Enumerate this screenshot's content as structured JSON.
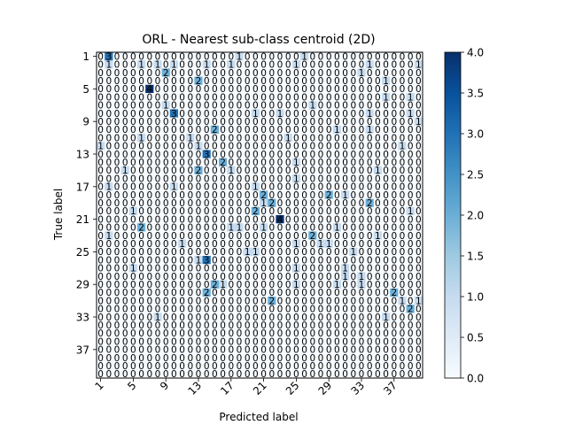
{
  "chart_data": {
    "type": "heatmap",
    "title": "ORL - Nearest sub-class centroid (2D)",
    "xlabel": "Predicted label",
    "ylabel": "True label",
    "n_classes": 40,
    "x_tick_labels": [
      "1",
      "5",
      "9",
      "13",
      "17",
      "21",
      "25",
      "29",
      "33",
      "37"
    ],
    "y_tick_labels": [
      "1",
      "5",
      "9",
      "13",
      "17",
      "21",
      "25",
      "29",
      "33",
      "37"
    ],
    "tick_step": 4,
    "colorbar": {
      "min": 0.0,
      "max": 4.0,
      "ticks": [
        "0.0",
        "0.5",
        "1.0",
        "1.5",
        "2.0",
        "2.5",
        "3.0",
        "3.5",
        "4.0"
      ]
    },
    "colormap": "Blues",
    "colors": {
      "low": "#f7fbff",
      "high": "#08306b",
      "text_dark": "#08306b",
      "text_light": "#ffffff"
    },
    "cells": [
      [
        1,
        2,
        3
      ],
      [
        1,
        18,
        1
      ],
      [
        1,
        26,
        1
      ],
      [
        2,
        2,
        1
      ],
      [
        2,
        6,
        1
      ],
      [
        2,
        8,
        1
      ],
      [
        2,
        10,
        1
      ],
      [
        2,
        14,
        1
      ],
      [
        2,
        17,
        1
      ],
      [
        2,
        25,
        1
      ],
      [
        2,
        34,
        1
      ],
      [
        2,
        40,
        1
      ],
      [
        3,
        9,
        2
      ],
      [
        3,
        33,
        1
      ],
      [
        4,
        13,
        2
      ],
      [
        4,
        36,
        1
      ],
      [
        5,
        7,
        4
      ],
      [
        6,
        36,
        1
      ],
      [
        6,
        39,
        1
      ],
      [
        7,
        9,
        1
      ],
      [
        7,
        27,
        1
      ],
      [
        8,
        10,
        3
      ],
      [
        8,
        20,
        1
      ],
      [
        8,
        23,
        1
      ],
      [
        8,
        34,
        1
      ],
      [
        8,
        39,
        1
      ],
      [
        9,
        40,
        1
      ],
      [
        10,
        15,
        2
      ],
      [
        10,
        30,
        1
      ],
      [
        10,
        34,
        1
      ],
      [
        11,
        6,
        1
      ],
      [
        11,
        12,
        1
      ],
      [
        11,
        24,
        1
      ],
      [
        12,
        1,
        1
      ],
      [
        12,
        13,
        1
      ],
      [
        12,
        38,
        1
      ],
      [
        13,
        14,
        3
      ],
      [
        14,
        16,
        2
      ],
      [
        14,
        25,
        1
      ],
      [
        15,
        4,
        1
      ],
      [
        15,
        13,
        2
      ],
      [
        15,
        17,
        1
      ],
      [
        15,
        35,
        1
      ],
      [
        16,
        25,
        1
      ],
      [
        17,
        2,
        1
      ],
      [
        17,
        10,
        1
      ],
      [
        17,
        20,
        1
      ],
      [
        18,
        21,
        2
      ],
      [
        18,
        29,
        2
      ],
      [
        18,
        31,
        1
      ],
      [
        19,
        21,
        1
      ],
      [
        19,
        22,
        2
      ],
      [
        19,
        34,
        2
      ],
      [
        20,
        5,
        1
      ],
      [
        20,
        20,
        2
      ],
      [
        20,
        39,
        1
      ],
      [
        21,
        23,
        4
      ],
      [
        22,
        6,
        2
      ],
      [
        22,
        17,
        1
      ],
      [
        22,
        18,
        1
      ],
      [
        22,
        21,
        1
      ],
      [
        22,
        30,
        1
      ],
      [
        23,
        2,
        1
      ],
      [
        23,
        27,
        2
      ],
      [
        23,
        35,
        1
      ],
      [
        24,
        11,
        1
      ],
      [
        24,
        25,
        1
      ],
      [
        24,
        28,
        1
      ],
      [
        24,
        29,
        1
      ],
      [
        25,
        19,
        1
      ],
      [
        25,
        20,
        1
      ],
      [
        25,
        32,
        1
      ],
      [
        26,
        13,
        1
      ],
      [
        26,
        14,
        3
      ],
      [
        27,
        5,
        1
      ],
      [
        27,
        25,
        1
      ],
      [
        27,
        31,
        1
      ],
      [
        28,
        31,
        1
      ],
      [
        28,
        33,
        1
      ],
      [
        29,
        15,
        2
      ],
      [
        29,
        16,
        1
      ],
      [
        29,
        25,
        1
      ],
      [
        29,
        30,
        1
      ],
      [
        29,
        33,
        1
      ],
      [
        30,
        14,
        2
      ],
      [
        30,
        37,
        2
      ],
      [
        31,
        22,
        2
      ],
      [
        31,
        38,
        1
      ],
      [
        31,
        40,
        1
      ],
      [
        32,
        39,
        2
      ],
      [
        33,
        8,
        1
      ],
      [
        33,
        36,
        1
      ]
    ]
  }
}
